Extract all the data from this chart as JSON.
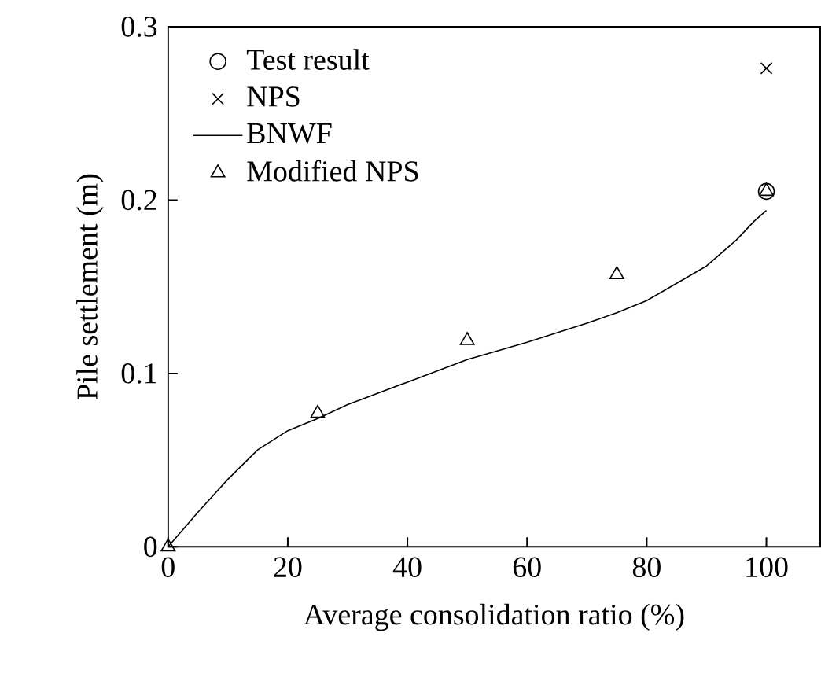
{
  "chart_data": {
    "type": "scatter",
    "xlabel": "Average consolidation ratio (%)",
    "ylabel": "Pile settlement (m)",
    "xlim": [
      0,
      109
    ],
    "ylim": [
      0,
      0.3
    ],
    "xticks": [
      0,
      20,
      40,
      60,
      80,
      100
    ],
    "yticks": [
      0,
      0.1,
      0.2,
      0.3
    ],
    "grid": false,
    "legend": "top left",
    "series": [
      {
        "name": "Test result",
        "marker": "circle",
        "color": "#000000",
        "x": [
          100
        ],
        "values": [
          0.205
        ]
      },
      {
        "name": "NPS",
        "marker": "cross",
        "color": "#000000",
        "x": [
          100
        ],
        "values": [
          0.276
        ]
      },
      {
        "name": "BNWF",
        "type": "line",
        "marker": "none",
        "line_style": "solid",
        "color": "#000000",
        "x": [
          0,
          5,
          10,
          15,
          20,
          25,
          30,
          40,
          50,
          60,
          70,
          75,
          80,
          90,
          95,
          98,
          100
        ],
        "values": [
          0,
          0.02,
          0.039,
          0.056,
          0.067,
          0.074,
          0.082,
          0.095,
          0.108,
          0.118,
          0.129,
          0.135,
          0.142,
          0.162,
          0.177,
          0.188,
          0.194
        ]
      },
      {
        "name": "Modified NPS",
        "marker": "triangle",
        "color": "#000000",
        "x": [
          0,
          25,
          50,
          75,
          100
        ],
        "values": [
          0,
          0.077,
          0.119,
          0.157,
          0.205
        ]
      }
    ]
  }
}
